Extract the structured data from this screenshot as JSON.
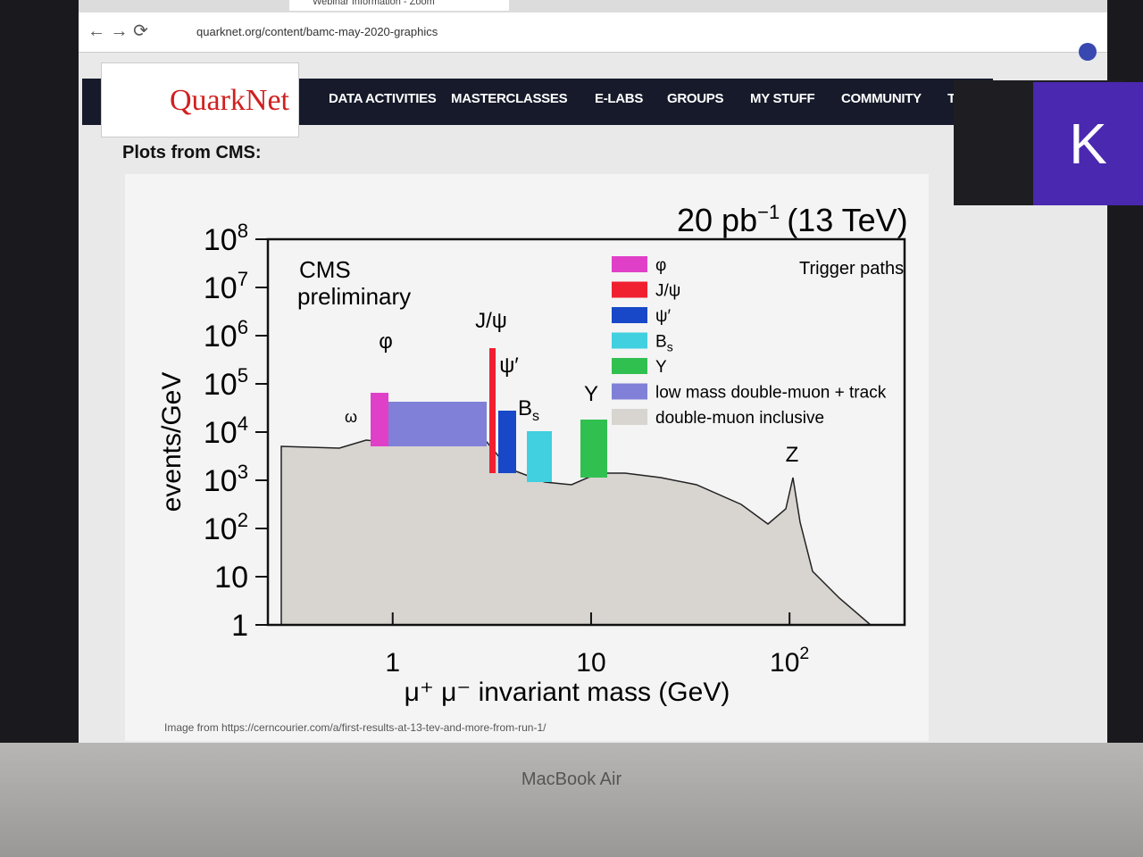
{
  "browser": {
    "tab": "Webinar Information - Zoom",
    "url": "quarknet.org/content/bamc-may-2020-graphics"
  },
  "site": {
    "logo": "QuarkNet",
    "nav": [
      "DATA ACTIVITIES",
      "MASTERCLASSES",
      "E-LABS",
      "GROUPS",
      "MY STUFF",
      "COMMUNITY",
      "TOOLS"
    ]
  },
  "avatar": "K",
  "heading": "Plots from CMS:",
  "plot": {
    "title": {
      "main": "20 pb",
      "sup": "−1",
      "rest": "(13 TeV)"
    },
    "experiment": "CMS",
    "status": "preliminary",
    "ylabel": "events/GeV",
    "xlabel": "μ⁺ μ⁻ invariant mass (GeV)",
    "log": true,
    "xlim": [
      0.235,
      380
    ],
    "ylim": [
      1,
      100000000
    ],
    "xticks": [
      {
        "value": 1,
        "label": "1"
      },
      {
        "value": 10,
        "label": "10"
      },
      {
        "value": 100,
        "label": "10",
        "sup": "2"
      }
    ],
    "yticks": [
      {
        "value": 1,
        "label": "1"
      },
      {
        "value": 10,
        "label": "10"
      },
      {
        "value": 100,
        "label": "10",
        "sup": "2"
      },
      {
        "value": 1000,
        "label": "10",
        "sup": "3"
      },
      {
        "value": 10000,
        "label": "10",
        "sup": "4"
      },
      {
        "value": 100000,
        "label": "10",
        "sup": "5"
      },
      {
        "value": 1000000,
        "label": "10",
        "sup": "6"
      },
      {
        "value": 10000000,
        "label": "10",
        "sup": "7"
      },
      {
        "value": 100000000,
        "label": "10",
        "sup": "8"
      }
    ],
    "peaks": [
      "ω",
      "φ",
      "J/ψ",
      "ψ′",
      "B",
      "Υ",
      "Z"
    ],
    "legend_title": "Trigger paths",
    "legend": [
      {
        "name": "φ",
        "color": "#e040c8"
      },
      {
        "name": "J/ψ",
        "color": "#f02030"
      },
      {
        "name": "ψ′",
        "color": "#1848c8"
      },
      {
        "name": "B",
        "sub": "s",
        "color": "#40d0e0"
      },
      {
        "name": "Υ",
        "color": "#30c050"
      },
      {
        "name": "low mass double-muon + track",
        "color": "#8080d8"
      },
      {
        "name": "double-muon inclusive",
        "color": "#d8d4d0"
      }
    ]
  },
  "caption": "Image from https://cerncourier.com/a/first-results-at-13-tev-and-more-from-run-1/",
  "device": "MacBook Air"
}
